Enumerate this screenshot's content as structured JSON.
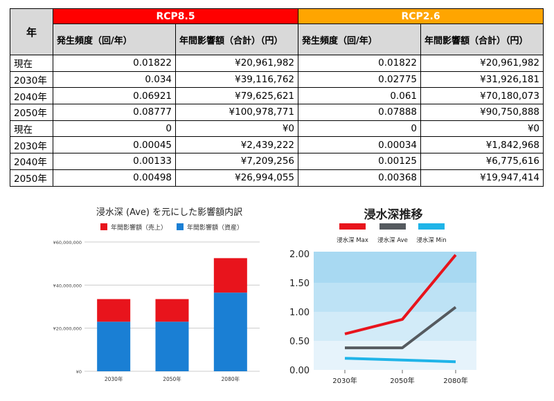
{
  "table": {
    "year_header": "年",
    "groups": [
      {
        "label": "RCP8.5",
        "color": "#ff0000"
      },
      {
        "label": "RCP2.6",
        "color": "#ffa500"
      }
    ],
    "sub_headers": [
      "発生頻度（回/年）",
      "年間影響額（合計）（円）",
      "発生頻度（回/年）",
      "年間影響額（合計）（円）"
    ],
    "rows": [
      [
        "現在",
        "0.01822",
        "¥20,961,982",
        "0.01822",
        "¥20,961,982"
      ],
      [
        "2030年",
        "0.034",
        "¥39,116,762",
        "0.02775",
        "¥31,926,181"
      ],
      [
        "2040年",
        "0.06921",
        "¥79,625,621",
        "0.061",
        "¥70,180,073"
      ],
      [
        "2050年",
        "0.08777",
        "¥100,978,771",
        "0.07888",
        "¥90,750,888"
      ],
      [
        "現在",
        "0",
        "¥0",
        "0",
        "¥0"
      ],
      [
        "2030年",
        "0.00045",
        "¥2,439,222",
        "0.00034",
        "¥1,842,968"
      ],
      [
        "2040年",
        "0.00133",
        "¥7,209,256",
        "0.00125",
        "¥6,775,616"
      ],
      [
        "2050年",
        "0.00498",
        "¥26,994,055",
        "0.00368",
        "¥19,947,414"
      ]
    ]
  },
  "chart_data": [
    {
      "type": "bar",
      "stacked": true,
      "title": "浸水深 (Ave) を元にした影響額内訳",
      "categories": [
        "2030年",
        "2050年",
        "2080年"
      ],
      "series": [
        {
          "name": "年間影響額（資産）",
          "color": "#1a7fd4",
          "values": [
            23000000,
            23000000,
            36500000
          ]
        },
        {
          "name": "年間影響額（売上）",
          "color": "#e8141c",
          "values": [
            10500000,
            10500000,
            16000000
          ]
        }
      ],
      "legend_order": [
        "年間影響額（売上）",
        "年間影響額（資産）"
      ],
      "ylim": [
        0,
        60000000
      ],
      "yticks": [
        0,
        20000000,
        40000000,
        60000000
      ],
      "ytick_labels": [
        "¥0",
        "¥20,000,000",
        "¥40,000,000",
        "¥60,000,000"
      ],
      "grid": true,
      "legend_position": "top"
    },
    {
      "type": "line",
      "title": "浸水深推移",
      "categories": [
        "2030年",
        "2050年",
        "2080年"
      ],
      "series": [
        {
          "name": "浸水深 Max",
          "color": "#e8141c",
          "values": [
            0.62,
            0.87,
            1.98
          ]
        },
        {
          "name": "浸水深 Ave",
          "color": "#555a5f",
          "values": [
            0.38,
            0.38,
            1.08
          ]
        },
        {
          "name": "浸水深 Min",
          "color": "#1fb4e8",
          "values": [
            0.2,
            0.17,
            0.14
          ]
        }
      ],
      "ylim": [
        0,
        2.0
      ],
      "yticks": [
        0,
        0.5,
        1.0,
        1.5,
        2.0
      ],
      "ytick_labels": [
        "0.00",
        "0.50",
        "1.00",
        "1.50",
        "2.00"
      ],
      "band_colors": [
        "#e6f3fb",
        "#d2ebf8",
        "#bde2f5",
        "#a8d9f2"
      ],
      "legend_position": "top"
    }
  ]
}
